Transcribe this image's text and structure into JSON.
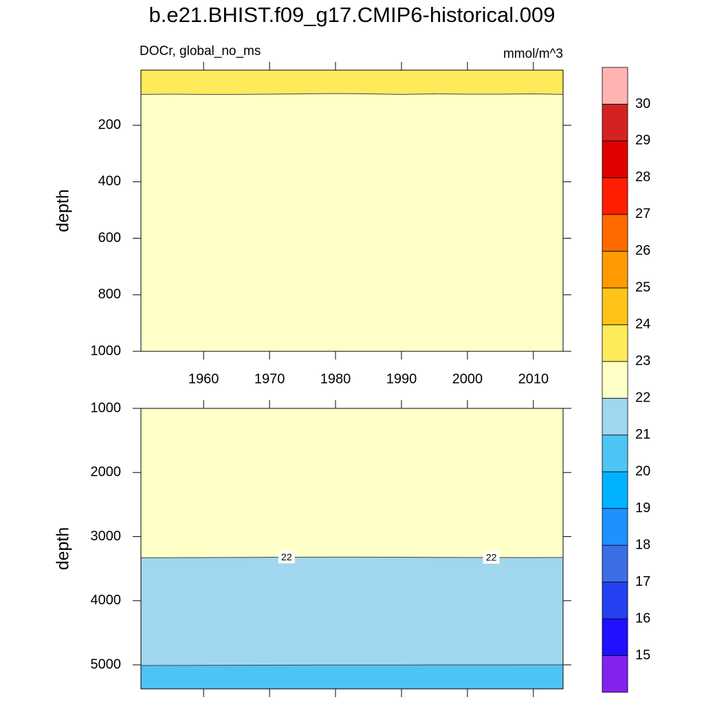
{
  "chart_data": [
    {
      "type": "contour",
      "title": "b.e21.BHIST.f09_g17.CMIP6-historical.009",
      "subtitle_left": "DOCr, global_no_ms",
      "subtitle_right": "mmol/m^3",
      "ylabel": "depth",
      "xlim": [
        1950.5,
        2014.5
      ],
      "xticks": [
        1960,
        1970,
        1980,
        1990,
        2000,
        2010
      ],
      "show_xtick_labels": true,
      "ylim": [
        5,
        1000
      ],
      "yticks": [
        200,
        400,
        600,
        800,
        1000
      ],
      "yreverse": true,
      "contours": [
        {
          "level": 23,
          "labeled": false,
          "x": [
            1950.5,
            1955,
            1960,
            1965,
            1970,
            1975,
            1980,
            1985,
            1990,
            1995,
            2000,
            2005,
            2010,
            2014.5
          ],
          "y": [
            91,
            90,
            91,
            91,
            90,
            89,
            88,
            89,
            91,
            89,
            90,
            90,
            89,
            91
          ]
        }
      ]
    },
    {
      "type": "contour",
      "ylabel": "depth",
      "xlim": [
        1950.5,
        2014.5
      ],
      "xticks": [
        1960,
        1970,
        1980,
        1990,
        2000,
        2010
      ],
      "show_xtick_labels": false,
      "ylim": [
        1000,
        5375
      ],
      "yticks": [
        1000,
        2000,
        3000,
        4000,
        5000
      ],
      "yreverse": true,
      "contours": [
        {
          "level": 21,
          "labeled": false,
          "x": [
            1950.5,
            1960,
            1970,
            1980,
            1990,
            2000,
            2010,
            2014.5
          ],
          "y": [
            5010,
            5008,
            5005,
            5003,
            5002,
            5001,
            5000,
            5000
          ]
        },
        {
          "level": 22,
          "labeled": true,
          "x": [
            1950.5,
            1960,
            1970,
            1980,
            1990,
            2000,
            2010,
            2014.5
          ],
          "y": [
            3330,
            3327,
            3322,
            3320,
            3322,
            3325,
            3327,
            3325
          ]
        }
      ]
    },
    {
      "type": "colorbar",
      "levels": [
        15,
        16,
        17,
        18,
        19,
        20,
        21,
        22,
        23,
        24,
        25,
        26,
        27,
        28,
        29,
        30
      ],
      "colors": [
        "#8222ee",
        "#2010ff",
        "#2540f0",
        "#3c6fe6",
        "#1e90ff",
        "#00b2ff",
        "#4ec4f5",
        "#a0d6ee",
        "#ffffc8",
        "#ffea5a",
        "#ffc31a",
        "#ff9a00",
        "#ff6a00",
        "#ff1e00",
        "#e00000",
        "#d42222",
        "#ffb3b3"
      ]
    }
  ]
}
